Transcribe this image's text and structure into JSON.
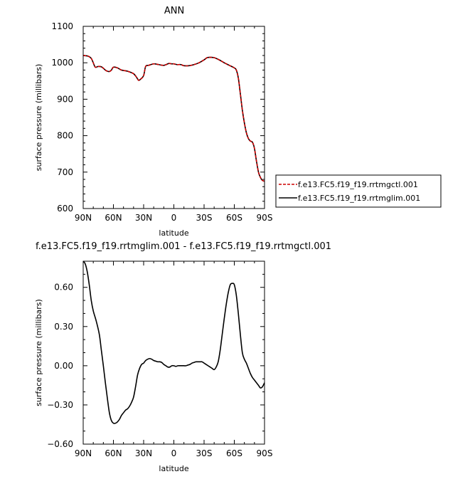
{
  "chart_data": [
    {
      "type": "line",
      "title": "ANN",
      "xlabel": "latitude",
      "ylabel": "surface pressure (millibars)",
      "xlim": [
        90,
        -90
      ],
      "ylim": [
        600,
        1100
      ],
      "x_ticks": [
        {
          "v": 90,
          "label": "90N"
        },
        {
          "v": 60,
          "label": "60N"
        },
        {
          "v": 30,
          "label": "30N"
        },
        {
          "v": 0,
          "label": "0"
        },
        {
          "v": -30,
          "label": "30S"
        },
        {
          "v": -60,
          "label": "60S"
        },
        {
          "v": -90,
          "label": "90S"
        }
      ],
      "y_ticks": [
        {
          "v": 600,
          "label": "600"
        },
        {
          "v": 700,
          "label": "700"
        },
        {
          "v": 800,
          "label": "800"
        },
        {
          "v": 900,
          "label": "900"
        },
        {
          "v": 1000,
          "label": "1000"
        },
        {
          "v": 1100,
          "label": "1100"
        }
      ],
      "legend_position": "right",
      "series": [
        {
          "name": "f.e13.FC5.f19_f19.rrtmgctl.001",
          "color": "#cc0000",
          "dash": "dashed",
          "x": [
            90,
            85,
            82,
            80,
            78,
            75,
            72,
            70,
            67,
            64,
            62,
            60,
            56,
            52,
            48,
            45,
            40,
            37,
            35,
            33,
            30,
            28,
            25,
            20,
            15,
            10,
            5,
            2,
            0,
            -3,
            -7,
            -10,
            -15,
            -20,
            -25,
            -30,
            -33,
            -36,
            -40,
            -45,
            -50,
            -55,
            -60,
            -62,
            -64,
            -66,
            -68,
            -70,
            -72,
            -74,
            -76,
            -78,
            -80,
            -82,
            -84,
            -86,
            -88,
            -90
          ],
          "y": [
            1020,
            1018,
            1012,
            1000,
            988,
            990,
            989,
            985,
            978,
            976,
            980,
            988,
            986,
            980,
            978,
            976,
            970,
            960,
            952,
            955,
            965,
            990,
            993,
            997,
            995,
            993,
            998,
            997,
            997,
            995,
            995,
            992,
            992,
            995,
            1000,
            1008,
            1014,
            1015,
            1014,
            1008,
            1000,
            993,
            986,
            980,
            958,
            915,
            870,
            835,
            808,
            792,
            785,
            782,
            765,
            730,
            700,
            685,
            677,
            675
          ]
        },
        {
          "name": "f.e13.FC5.f19_f19.rrtmglim.001",
          "color": "#000000",
          "dash": "solid",
          "x": [
            90,
            85,
            82,
            80,
            78,
            75,
            72,
            70,
            67,
            64,
            62,
            60,
            56,
            52,
            48,
            45,
            40,
            37,
            35,
            33,
            30,
            28,
            25,
            20,
            15,
            10,
            5,
            2,
            0,
            -3,
            -7,
            -10,
            -15,
            -20,
            -25,
            -30,
            -33,
            -36,
            -40,
            -45,
            -50,
            -55,
            -60,
            -62,
            -64,
            -66,
            -68,
            -70,
            -72,
            -74,
            -76,
            -78,
            -80,
            -82,
            -84,
            -86,
            -88,
            -90
          ],
          "y": [
            1020,
            1018,
            1012,
            1000,
            988,
            990,
            989,
            985,
            978,
            976,
            980,
            988,
            986,
            980,
            978,
            976,
            970,
            960,
            952,
            955,
            965,
            990,
            993,
            997,
            995,
            993,
            998,
            997,
            997,
            995,
            995,
            992,
            992,
            995,
            1000,
            1008,
            1014,
            1015,
            1014,
            1008,
            1000,
            993,
            986,
            980,
            958,
            915,
            870,
            835,
            808,
            792,
            785,
            782,
            765,
            730,
            700,
            685,
            677,
            675
          ]
        }
      ]
    },
    {
      "type": "line",
      "title": "f.e13.FC5.f19_f19.rrtmglim.001 - f.e13.FC5.f19_f19.rrtmgctl.001",
      "xlabel": "latitude",
      "ylabel": "surface pressure (millibars)",
      "xlim": [
        90,
        -90
      ],
      "ylim": [
        -0.6,
        0.8
      ],
      "x_ticks": [
        {
          "v": 90,
          "label": "90N"
        },
        {
          "v": 60,
          "label": "60N"
        },
        {
          "v": 30,
          "label": "30N"
        },
        {
          "v": 0,
          "label": "0"
        },
        {
          "v": -30,
          "label": "30S"
        },
        {
          "v": -60,
          "label": "60S"
        },
        {
          "v": -90,
          "label": "90S"
        }
      ],
      "y_ticks": [
        {
          "v": -0.6,
          "label": "−0.60"
        },
        {
          "v": -0.3,
          "label": "−0.30"
        },
        {
          "v": 0,
          "label": "0.00"
        },
        {
          "v": 0.3,
          "label": "0.30"
        },
        {
          "v": 0.6,
          "label": "0.60"
        }
      ],
      "series": [
        {
          "color": "#000000",
          "x": [
            90,
            88,
            86,
            84,
            82,
            80,
            77,
            74,
            72,
            70,
            68,
            66,
            64,
            62,
            60,
            58,
            56,
            54,
            52,
            50,
            48,
            46,
            44,
            42,
            40,
            38,
            36,
            34,
            32,
            30,
            28,
            26,
            24,
            22,
            20,
            18,
            16,
            14,
            12,
            10,
            8,
            6,
            4,
            2,
            0,
            -2,
            -4,
            -6,
            -8,
            -10,
            -12,
            -14,
            -16,
            -18,
            -20,
            -22,
            -24,
            -26,
            -28,
            -30,
            -32,
            -34,
            -36,
            -38,
            -40,
            -42,
            -44,
            -46,
            -48,
            -50,
            -52,
            -54,
            -56,
            -58,
            -60,
            -62,
            -64,
            -66,
            -68,
            -70,
            -72,
            -74,
            -76,
            -78,
            -80,
            -82,
            -84,
            -86,
            -88,
            -90
          ],
          "y": [
            0.8,
            0.78,
            0.72,
            0.62,
            0.5,
            0.42,
            0.34,
            0.24,
            0.12,
            0.0,
            -0.13,
            -0.25,
            -0.36,
            -0.42,
            -0.44,
            -0.44,
            -0.43,
            -0.41,
            -0.38,
            -0.36,
            -0.34,
            -0.33,
            -0.31,
            -0.28,
            -0.24,
            -0.16,
            -0.07,
            -0.02,
            0.01,
            0.02,
            0.04,
            0.05,
            0.055,
            0.05,
            0.04,
            0.035,
            0.03,
            0.03,
            0.025,
            0.01,
            0.0,
            -0.01,
            -0.01,
            0.0,
            0.0,
            -0.005,
            0.0,
            0.0,
            0.0,
            0.0,
            0.0,
            0.005,
            0.01,
            0.02,
            0.025,
            0.03,
            0.03,
            0.03,
            0.03,
            0.02,
            0.01,
            0.0,
            -0.01,
            -0.02,
            -0.03,
            -0.01,
            0.03,
            0.12,
            0.24,
            0.36,
            0.47,
            0.56,
            0.62,
            0.63,
            0.62,
            0.54,
            0.4,
            0.24,
            0.1,
            0.05,
            0.02,
            -0.02,
            -0.06,
            -0.09,
            -0.11,
            -0.13,
            -0.15,
            -0.17,
            -0.16,
            -0.13
          ]
        }
      ]
    }
  ]
}
